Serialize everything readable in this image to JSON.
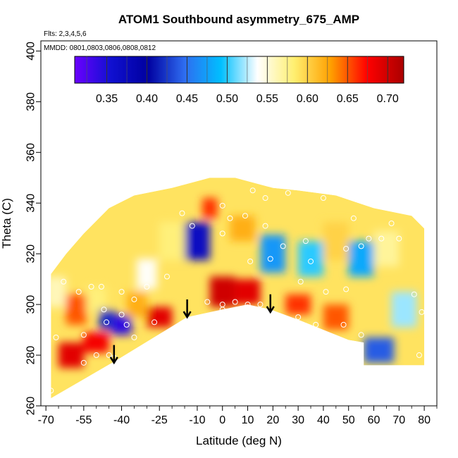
{
  "chart_data": {
    "type": "heatmap",
    "title": "ATOM1 Southbound asymmetry_675_AMP",
    "notes": [
      "Flts: 2,3,4,5,6",
      "MMDD: 0801,0803,0806,0808,0812"
    ],
    "xlabel": "Latitude (deg N)",
    "ylabel": "Theta (C)",
    "xlim": [
      -72,
      85
    ],
    "ylim": [
      260,
      404
    ],
    "x_ticks": [
      -70,
      -55,
      -40,
      -25,
      -10,
      0,
      10,
      20,
      30,
      40,
      50,
      60,
      70,
      80
    ],
    "y_ticks": [
      260,
      280,
      300,
      320,
      340,
      360,
      380,
      400
    ],
    "grid": false,
    "colorbar": {
      "placement": "top",
      "range": [
        0.31,
        0.72
      ],
      "stops": [
        "#6a00ff",
        "#1010d0",
        "#0000a0",
        "#2e6cf0",
        "#00bfff",
        "#ffffff",
        "#ffef70",
        "#ffa000",
        "#ff0000",
        "#aa0000"
      ],
      "ticks": [
        0.35,
        0.4,
        0.45,
        0.5,
        0.55,
        0.6,
        0.65,
        0.7
      ],
      "tick_labels": [
        "0.35",
        "0.40",
        "0.45",
        "0.50",
        "0.55",
        "0.60",
        "0.65",
        "0.70"
      ]
    },
    "cells": [
      {
        "x": -66,
        "y": 305,
        "w": 8,
        "h": 12,
        "v": 0.56
      },
      {
        "x": -58,
        "y": 298,
        "w": 8,
        "h": 12,
        "v": 0.65
      },
      {
        "x": -50,
        "y": 302,
        "w": 8,
        "h": 10,
        "v": 0.58
      },
      {
        "x": -46,
        "y": 294,
        "w": 6,
        "h": 8,
        "v": 0.42
      },
      {
        "x": -40,
        "y": 292,
        "w": 8,
        "h": 8,
        "v": 0.34
      },
      {
        "x": -34,
        "y": 300,
        "w": 8,
        "h": 10,
        "v": 0.62
      },
      {
        "x": -30,
        "y": 312,
        "w": 8,
        "h": 12,
        "v": 0.54
      },
      {
        "x": -20,
        "y": 325,
        "w": 10,
        "h": 15,
        "v": 0.58
      },
      {
        "x": -10,
        "y": 325,
        "w": 10,
        "h": 15,
        "v": 0.37
      },
      {
        "x": -5,
        "y": 338,
        "w": 6,
        "h": 8,
        "v": 0.66
      },
      {
        "x": 8,
        "y": 330,
        "w": 10,
        "h": 10,
        "v": 0.62
      },
      {
        "x": 20,
        "y": 320,
        "w": 10,
        "h": 15,
        "v": 0.47
      },
      {
        "x": 35,
        "y": 318,
        "w": 10,
        "h": 14,
        "v": 0.5
      },
      {
        "x": 45,
        "y": 325,
        "w": 10,
        "h": 15,
        "v": 0.6
      },
      {
        "x": 55,
        "y": 318,
        "w": 10,
        "h": 14,
        "v": 0.48
      },
      {
        "x": 65,
        "y": 322,
        "w": 10,
        "h": 14,
        "v": 0.57
      },
      {
        "x": 72,
        "y": 298,
        "w": 10,
        "h": 14,
        "v": 0.52
      },
      {
        "x": 0,
        "y": 305,
        "w": 10,
        "h": 12,
        "v": 0.7
      },
      {
        "x": 10,
        "y": 305,
        "w": 10,
        "h": 10,
        "v": 0.69
      },
      {
        "x": 30,
        "y": 300,
        "w": 10,
        "h": 8,
        "v": 0.66
      },
      {
        "x": 45,
        "y": 295,
        "w": 10,
        "h": 10,
        "v": 0.65
      },
      {
        "x": 62,
        "y": 282,
        "w": 12,
        "h": 10,
        "v": 0.44
      },
      {
        "x": -60,
        "y": 280,
        "w": 10,
        "h": 10,
        "v": 0.69
      },
      {
        "x": -50,
        "y": 285,
        "w": 10,
        "h": 8,
        "v": 0.68
      },
      {
        "x": -25,
        "y": 295,
        "w": 10,
        "h": 8,
        "v": 0.69
      }
    ],
    "observation_points": [
      {
        "x": -68,
        "y": 266
      },
      {
        "x": -66,
        "y": 287
      },
      {
        "x": -63,
        "y": 309
      },
      {
        "x": -57,
        "y": 305
      },
      {
        "x": -55,
        "y": 288
      },
      {
        "x": -55,
        "y": 277
      },
      {
        "x": -52,
        "y": 307
      },
      {
        "x": -50,
        "y": 280
      },
      {
        "x": -48,
        "y": 307
      },
      {
        "x": -47,
        "y": 298
      },
      {
        "x": -46,
        "y": 293
      },
      {
        "x": -45,
        "y": 280
      },
      {
        "x": -43,
        "y": 279
      },
      {
        "x": -40,
        "y": 296
      },
      {
        "x": -40,
        "y": 305
      },
      {
        "x": -38,
        "y": 292
      },
      {
        "x": -35,
        "y": 302
      },
      {
        "x": -35,
        "y": 287
      },
      {
        "x": -30,
        "y": 307
      },
      {
        "x": -27,
        "y": 293
      },
      {
        "x": -22,
        "y": 311
      },
      {
        "x": -16,
        "y": 336
      },
      {
        "x": -12,
        "y": 331
      },
      {
        "x": -6,
        "y": 301
      },
      {
        "x": 0,
        "y": 300
      },
      {
        "x": 0,
        "y": 298
      },
      {
        "x": 0,
        "y": 339
      },
      {
        "x": 0,
        "y": 328
      },
      {
        "x": 3,
        "y": 334
      },
      {
        "x": 5,
        "y": 301
      },
      {
        "x": 9,
        "y": 335
      },
      {
        "x": 10,
        "y": 300
      },
      {
        "x": 11,
        "y": 317
      },
      {
        "x": 12,
        "y": 345
      },
      {
        "x": 15,
        "y": 300
      },
      {
        "x": 17,
        "y": 331
      },
      {
        "x": 17,
        "y": 342
      },
      {
        "x": 19,
        "y": 318
      },
      {
        "x": 24,
        "y": 323
      },
      {
        "x": 26,
        "y": 344
      },
      {
        "x": 30,
        "y": 295
      },
      {
        "x": 31,
        "y": 309
      },
      {
        "x": 33,
        "y": 325
      },
      {
        "x": 35,
        "y": 317
      },
      {
        "x": 37,
        "y": 292
      },
      {
        "x": 40,
        "y": 342
      },
      {
        "x": 41,
        "y": 305
      },
      {
        "x": 48,
        "y": 292
      },
      {
        "x": 49,
        "y": 306
      },
      {
        "x": 49,
        "y": 322
      },
      {
        "x": 52,
        "y": 334
      },
      {
        "x": 55,
        "y": 323
      },
      {
        "x": 55,
        "y": 288
      },
      {
        "x": 58,
        "y": 326
      },
      {
        "x": 63,
        "y": 326
      },
      {
        "x": 67,
        "y": 332
      },
      {
        "x": 70,
        "y": 326
      },
      {
        "x": 76,
        "y": 304
      },
      {
        "x": 78,
        "y": 280
      },
      {
        "x": 79,
        "y": 297
      }
    ],
    "arrows": [
      {
        "x": -43,
        "y_top": 284,
        "y_tip": 277
      },
      {
        "x": -14,
        "y_top": 302,
        "y_tip": 295
      },
      {
        "x": 19,
        "y_top": 304,
        "y_tip": 297
      }
    ]
  }
}
